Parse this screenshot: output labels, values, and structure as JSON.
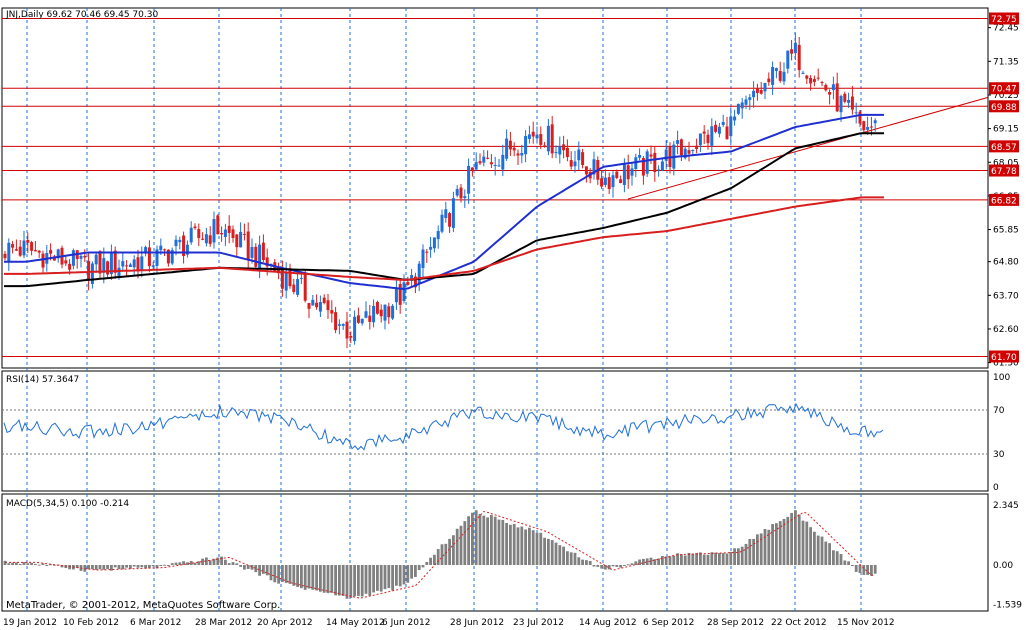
{
  "chart_data": [
    {
      "type": "candlestick",
      "title": "JNJ,Daily  69.62 70.46 69.45 70.30",
      "ylim": [
        61.5,
        73.1
      ],
      "y_ticks": [
        "72.45",
        "71.35",
        "70.25",
        "69.15",
        "68.05",
        "66.95",
        "65.85",
        "64.80",
        "63.70",
        "62.60",
        "61.50"
      ],
      "x_labels": [
        "19 Jan 2012",
        "10 Feb 2012",
        "6 Mar 2012",
        "28 Mar 2012",
        "20 Apr 2012",
        "14 May 2012",
        "6 Jun 2012",
        "28 Jun 2012",
        "23 Jul 2012",
        "14 Aug 2012",
        "6 Sep 2012",
        "28 Sep 2012",
        "22 Oct 2012",
        "15 Nov 2012"
      ],
      "last_price": "70.30",
      "levels": [
        {
          "price": 72.75,
          "label": "72.75"
        },
        {
          "price": 70.47,
          "label": "70.47"
        },
        {
          "price": 69.88,
          "label": "69.88"
        },
        {
          "price": 68.57,
          "label": "68.57"
        },
        {
          "price": 67.78,
          "label": "67.78"
        },
        {
          "price": 66.82,
          "label": "66.82"
        },
        {
          "price": 61.7,
          "label": "61.70"
        }
      ],
      "trendline": {
        "from": [
          "14 Aug 2012",
          66.85
        ],
        "to": [
          "15 Nov 2012",
          69.0
        ]
      },
      "close_keypoints": [
        [
          "19 Jan 2012",
          65.2
        ],
        [
          "10 Feb 2012",
          64.6
        ],
        [
          "6 Mar 2012",
          64.9
        ],
        [
          "28 Mar 2012",
          65.9
        ],
        [
          "20 Apr 2012",
          64.4
        ],
        [
          "14 May 2012",
          62.5
        ],
        [
          "6 Jun 2012",
          63.8
        ],
        [
          "28 Jun 2012",
          67.8
        ],
        [
          "23 Jul 2012",
          69.1
        ],
        [
          "14 Aug 2012",
          67.5
        ],
        [
          "6 Sep 2012",
          68.2
        ],
        [
          "28 Sep 2012",
          69.3
        ],
        [
          "22 Oct 2012",
          71.6
        ],
        [
          "15 Nov 2012",
          69.2
        ]
      ],
      "moving_averages": [
        {
          "color": "#1f2fd0",
          "keypoints": [
            [
              "19 Jan 2012",
              64.8
            ],
            [
              "10 Feb 2012",
              65.1
            ],
            [
              "28 Mar 2012",
              65.1
            ],
            [
              "20 Apr 2012",
              64.6
            ],
            [
              "14 May 2012",
              64.1
            ],
            [
              "6 Jun 2012",
              63.9
            ],
            [
              "28 Jun 2012",
              64.8
            ],
            [
              "23 Jul 2012",
              66.6
            ],
            [
              "14 Aug 2012",
              67.9
            ],
            [
              "6 Sep 2012",
              68.2
            ],
            [
              "28 Sep 2012",
              68.4
            ],
            [
              "22 Oct 2012",
              69.2
            ],
            [
              "15 Nov 2012",
              69.6
            ]
          ]
        },
        {
          "color": "#000000",
          "keypoints": [
            [
              "19 Jan 2012",
              64.0
            ],
            [
              "10 Feb 2012",
              64.2
            ],
            [
              "28 Mar 2012",
              64.6
            ],
            [
              "14 May 2012",
              64.5
            ],
            [
              "6 Jun 2012",
              64.2
            ],
            [
              "28 Jun 2012",
              64.4
            ],
            [
              "23 Jul 2012",
              65.5
            ],
            [
              "14 Aug 2012",
              65.9
            ],
            [
              "6 Sep 2012",
              66.4
            ],
            [
              "28 Sep 2012",
              67.2
            ],
            [
              "22 Oct 2012",
              68.5
            ],
            [
              "15 Nov 2012",
              69.0
            ]
          ]
        },
        {
          "color": "#d81e1e",
          "keypoints": [
            [
              "19 Jan 2012",
              64.4
            ],
            [
              "28 Mar 2012",
              64.6
            ],
            [
              "14 May 2012",
              64.3
            ],
            [
              "6 Jun 2012",
              64.2
            ],
            [
              "28 Jun 2012",
              64.5
            ],
            [
              "23 Jul 2012",
              65.2
            ],
            [
              "14 Aug 2012",
              65.6
            ],
            [
              "6 Sep 2012",
              65.8
            ],
            [
              "28 Sep 2012",
              66.2
            ],
            [
              "22 Oct 2012",
              66.6
            ],
            [
              "15 Nov 2012",
              66.9
            ]
          ]
        }
      ]
    },
    {
      "type": "line",
      "title": "RSI(14) 57.3647",
      "ylim": [
        0,
        100
      ],
      "y_ticks": [
        "100",
        "70",
        "30",
        "0"
      ],
      "levels": [
        70,
        30
      ],
      "keypoints": [
        [
          "19 Jan 2012",
          55
        ],
        [
          "10 Feb 2012",
          50
        ],
        [
          "6 Mar 2012",
          56
        ],
        [
          "28 Mar 2012",
          68
        ],
        [
          "20 Apr 2012",
          62
        ],
        [
          "14 May 2012",
          38
        ],
        [
          "6 Jun 2012",
          45
        ],
        [
          "28 Jun 2012",
          70
        ],
        [
          "23 Jul 2012",
          62
        ],
        [
          "14 Aug 2012",
          48
        ],
        [
          "6 Sep 2012",
          58
        ],
        [
          "28 Sep 2012",
          65
        ],
        [
          "22 Oct 2012",
          72
        ],
        [
          "15 Nov 2012",
          50
        ]
      ]
    },
    {
      "type": "bar",
      "title": "MACD(5,34,5) 0.100 -0.214",
      "ylim": [
        -1.75,
        2.55
      ],
      "y_ticks": [
        "2.345",
        "0.00",
        "-1.539"
      ],
      "keypoints": [
        [
          "19 Jan 2012",
          0.1
        ],
        [
          "10 Feb 2012",
          -0.2
        ],
        [
          "6 Mar 2012",
          -0.1
        ],
        [
          "28 Mar 2012",
          0.3
        ],
        [
          "20 Apr 2012",
          -0.7
        ],
        [
          "14 May 2012",
          -1.3
        ],
        [
          "6 Jun 2012",
          -0.8
        ],
        [
          "28 Jun 2012",
          2.1
        ],
        [
          "23 Jul 2012",
          1.3
        ],
        [
          "14 Aug 2012",
          -0.2
        ],
        [
          "6 Sep 2012",
          0.4
        ],
        [
          "28 Sep 2012",
          0.5
        ],
        [
          "22 Oct 2012",
          2.1
        ],
        [
          "15 Nov 2012",
          -0.4
        ]
      ]
    }
  ],
  "footer": "MetaTrader, © 2001-2012, MetaQuotes Software Corp."
}
